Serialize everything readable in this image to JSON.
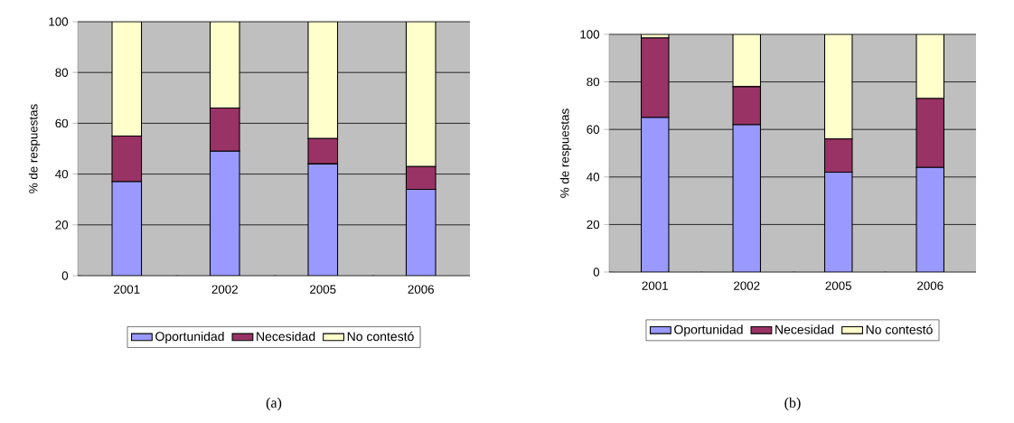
{
  "chart_data": [
    {
      "type": "bar",
      "stacked": true,
      "categories": [
        "2001",
        "2002",
        "2005",
        "2006"
      ],
      "ylabel": "% de respuestas",
      "ylim": [
        0,
        100
      ],
      "yticks": [
        0,
        20,
        40,
        60,
        80,
        100
      ],
      "grid": "y",
      "legend": "bottom",
      "annotations": [
        "(a)"
      ],
      "series": [
        {
          "name": "Oportunidad",
          "color": "#9999ff",
          "values": [
            37,
            49,
            44,
            34
          ]
        },
        {
          "name": "Necesidad",
          "color": "#993366",
          "values": [
            18,
            17,
            10,
            9
          ]
        },
        {
          "name": "No contestó",
          "color": "#ffffcc",
          "values": [
            45,
            34,
            46,
            57
          ]
        }
      ]
    },
    {
      "type": "bar",
      "stacked": true,
      "categories": [
        "2001",
        "2002",
        "2005",
        "2006"
      ],
      "ylabel": "% de respuestas",
      "ylim": [
        0,
        100
      ],
      "yticks": [
        0,
        20,
        40,
        60,
        80,
        100
      ],
      "grid": "y",
      "legend": "bottom",
      "annotations": [
        "(b)"
      ],
      "series": [
        {
          "name": "Oportunidad",
          "color": "#9999ff",
          "values": [
            65,
            62,
            42,
            44
          ]
        },
        {
          "name": "Necesidad",
          "color": "#993366",
          "values": [
            33.5,
            16,
            14,
            29
          ]
        },
        {
          "name": "No contestó",
          "color": "#ffffcc",
          "values": [
            1.5,
            22,
            44,
            27
          ]
        }
      ]
    }
  ]
}
